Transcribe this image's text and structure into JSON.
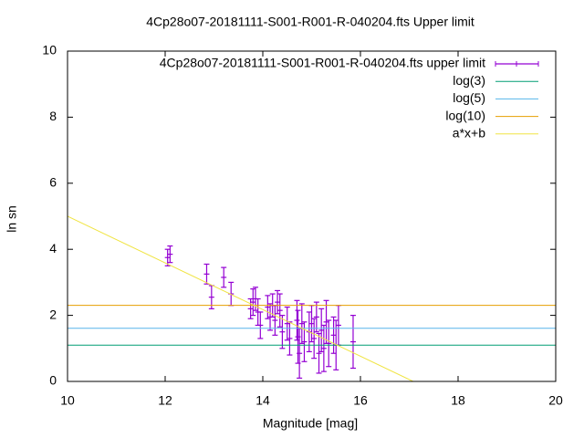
{
  "chart_data": {
    "type": "scatter",
    "title": "4Cp28o07-20181111-S001-R001-R-040204.fts Upper limit",
    "x_label": "Magnitude [mag]",
    "y_label": "ln sn",
    "xlim": [
      10,
      20
    ],
    "xticks": [
      10,
      12,
      14,
      16,
      18,
      20
    ],
    "ylim": [
      0,
      10
    ],
    "yticks": [
      0,
      2,
      4,
      6,
      8,
      10
    ],
    "legend": "top-right",
    "series": [
      {
        "name": "4Cp28o07-20181111-S001-R001-R-040204.fts upper limit",
        "style": "errorbars",
        "color": "#9400d3",
        "x": [
          12.05,
          12.1,
          12.85,
          12.95,
          13.2,
          13.35,
          13.75,
          13.8,
          13.85,
          13.9,
          13.95,
          14.1,
          14.15,
          14.2,
          14.25,
          14.3,
          14.35,
          14.4,
          14.5,
          14.55,
          14.7,
          14.72,
          14.75,
          14.8,
          14.85,
          14.95,
          15.0,
          15.05,
          15.1,
          15.15,
          15.2,
          15.25,
          15.3,
          15.35,
          15.45,
          15.5,
          15.55,
          15.85
        ],
        "values": [
          3.75,
          3.85,
          3.25,
          2.55,
          3.15,
          2.65,
          2.2,
          2.4,
          2.5,
          2.1,
          1.7,
          2.25,
          1.95,
          2.3,
          1.85,
          2.4,
          2.15,
          1.5,
          1.75,
          1.3,
          1.85,
          1.35,
          0.85,
          1.75,
          1.2,
          1.5,
          1.75,
          1.3,
          1.95,
          0.85,
          1.55,
          1.0,
          1.8,
          1.15,
          1.4,
          1.1,
          1.7,
          1.2
        ],
        "errors": [
          0.25,
          0.25,
          0.3,
          0.35,
          0.3,
          0.35,
          0.3,
          0.4,
          0.35,
          0.4,
          0.4,
          0.35,
          0.4,
          0.35,
          0.45,
          0.35,
          0.5,
          0.5,
          0.5,
          0.5,
          0.6,
          0.8,
          0.75,
          0.6,
          0.6,
          0.6,
          0.55,
          0.6,
          0.45,
          0.6,
          0.65,
          0.7,
          0.65,
          0.7,
          0.55,
          0.75,
          0.6,
          0.8
        ]
      },
      {
        "name": "log(3)",
        "style": "line",
        "color": "#009e73",
        "x": [
          10,
          20
        ],
        "values": [
          1.0986,
          1.0986
        ]
      },
      {
        "name": "log(5)",
        "style": "line",
        "color": "#56b4e9",
        "x": [
          10,
          20
        ],
        "values": [
          1.6094,
          1.6094
        ]
      },
      {
        "name": "log(10)",
        "style": "line",
        "color": "#e69f00",
        "x": [
          10,
          20
        ],
        "values": [
          2.3026,
          2.3026
        ]
      },
      {
        "name": "a*x+b",
        "style": "line",
        "color": "#f0e442",
        "x": [
          10,
          17.08
        ],
        "values": [
          5.0,
          0
        ]
      }
    ]
  }
}
